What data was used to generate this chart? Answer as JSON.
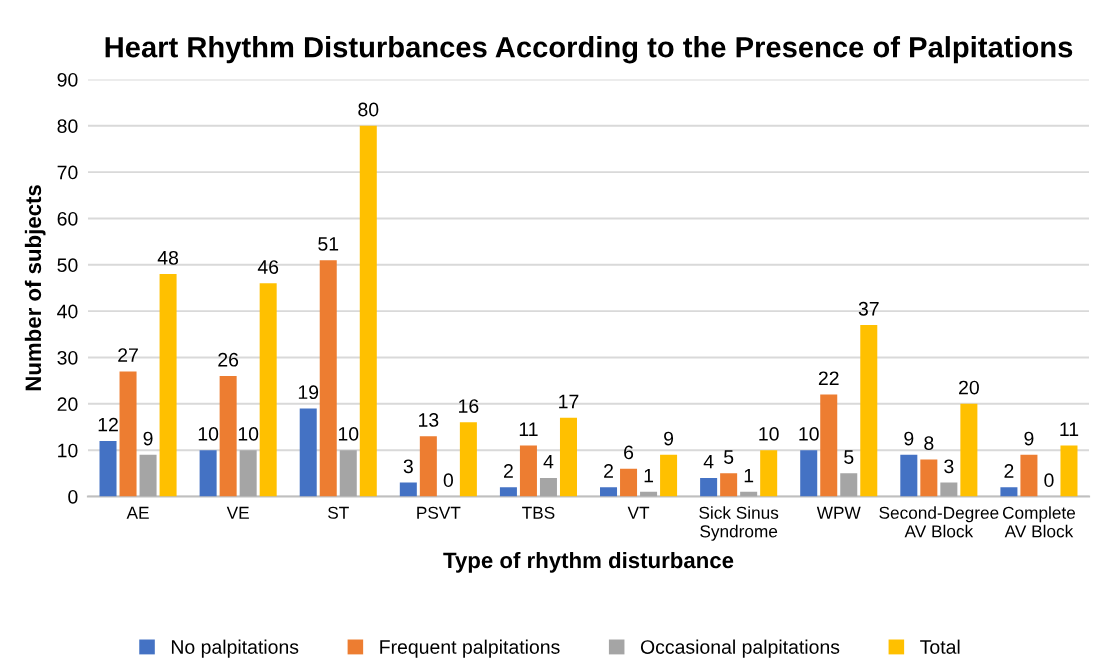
{
  "chart_data": {
    "type": "bar",
    "title": "Heart Rhythm Disturbances According to the Presence of Palpitations",
    "xlabel": "Type of rhythm disturbance",
    "ylabel": "Number of subjects",
    "categories": [
      "AE",
      "VE",
      "ST",
      "PSVT",
      "TBS",
      "VT",
      "Sick Sinus\nSyndrome",
      "WPW",
      "Second-Degree\nAV Block",
      "Complete\nAV Block"
    ],
    "series": [
      {
        "name": "No palpitations",
        "color": "#4472c4",
        "values": [
          12,
          10,
          19,
          3,
          2,
          2,
          4,
          10,
          9,
          2
        ]
      },
      {
        "name": "Frequent palpitations",
        "color": "#ed7d31",
        "values": [
          27,
          26,
          51,
          13,
          11,
          6,
          5,
          22,
          8,
          9
        ]
      },
      {
        "name": "Occasional palpitations",
        "color": "#a5a5a5",
        "values": [
          9,
          10,
          10,
          0,
          4,
          1,
          1,
          5,
          3,
          0
        ]
      },
      {
        "name": "Total",
        "color": "#ffc000",
        "values": [
          48,
          46,
          80,
          16,
          17,
          9,
          10,
          37,
          20,
          11
        ]
      }
    ],
    "ylim": [
      0,
      90
    ],
    "yticks": [
      0,
      10,
      20,
      30,
      40,
      50,
      60,
      70,
      80,
      90
    ],
    "grid": "y",
    "legend": "bottom",
    "data_labels": true
  }
}
